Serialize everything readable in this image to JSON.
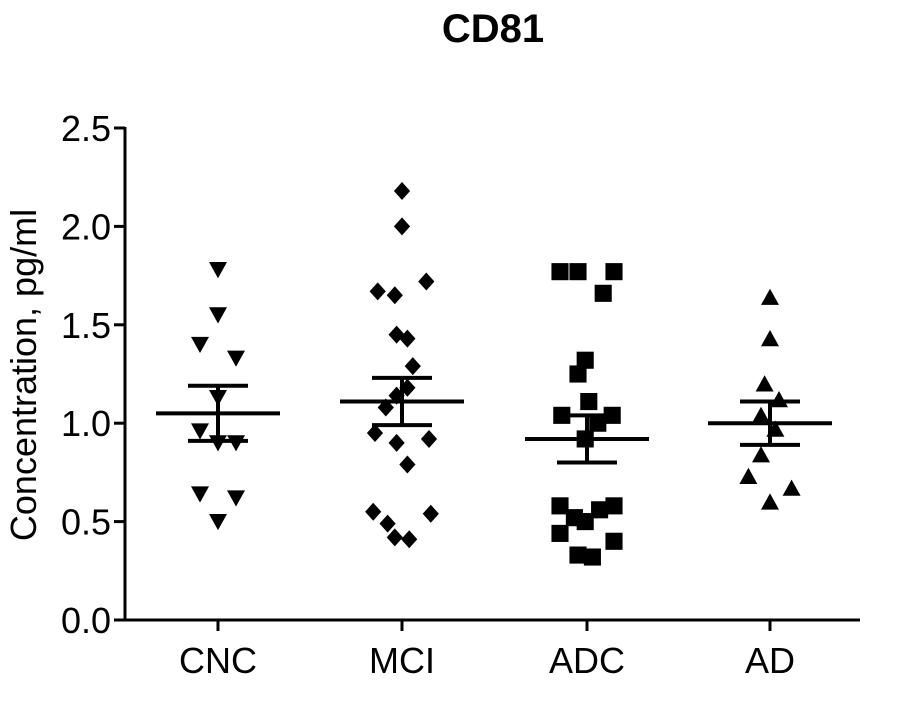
{
  "chart_data": {
    "type": "scatter",
    "title": "CD81",
    "xlabel": "",
    "ylabel": "Concentration, pg/ml",
    "ylim": [
      0.0,
      2.5
    ],
    "yticks": [
      "0.0",
      "0.5",
      "1.0",
      "1.5",
      "2.0",
      "2.5"
    ],
    "yticks_values": [
      0.0,
      0.5,
      1.0,
      1.5,
      2.0,
      2.5
    ],
    "categories": [
      "CNC",
      "MCI",
      "ADC",
      "AD"
    ],
    "grid": false,
    "legend": "none",
    "colors": {
      "marker": "#000000",
      "axis": "#000000"
    },
    "series": [
      {
        "category": "CNC",
        "marker": "triangle-down",
        "values": [
          1.78,
          1.55,
          1.4,
          1.33,
          1.13,
          0.96,
          0.9,
          0.9,
          0.64,
          0.62,
          0.5
        ],
        "offsets": [
          0,
          0,
          -1,
          1,
          0,
          -1,
          0,
          1,
          -1,
          1,
          0
        ],
        "mean": 1.05,
        "sem_upper": 1.19,
        "sem_lower": 0.91
      },
      {
        "category": "MCI",
        "marker": "diamond",
        "values": [
          2.18,
          2.0,
          1.72,
          1.67,
          1.65,
          1.45,
          1.43,
          1.29,
          1.18,
          1.14,
          1.08,
          0.95,
          0.92,
          0.9,
          0.79,
          0.55,
          0.54,
          0.49,
          0.42,
          0.41
        ],
        "offsets": [
          0,
          0,
          1.35,
          -1.35,
          -0.4,
          -0.3,
          0.3,
          0.6,
          0.3,
          -0.3,
          -0.9,
          -1.5,
          1.5,
          -0.3,
          0.3,
          -1.6,
          1.6,
          -0.8,
          -0.4,
          0.4
        ],
        "mean": 1.11,
        "sem_upper": 1.23,
        "sem_lower": 0.99
      },
      {
        "category": "ADC",
        "marker": "square",
        "values": [
          1.77,
          1.77,
          1.77,
          1.66,
          1.32,
          1.25,
          1.11,
          1.04,
          1.04,
          1.0,
          0.92,
          0.58,
          0.58,
          0.56,
          0.52,
          0.5,
          0.44,
          0.4,
          0.33,
          0.32
        ],
        "offsets": [
          -1.5,
          -0.5,
          1.5,
          0.9,
          -0.1,
          -0.5,
          0.1,
          -1.4,
          1.4,
          0.6,
          -0.1,
          -1.5,
          1.5,
          0.7,
          -0.7,
          -0.1,
          -1.5,
          1.5,
          -0.5,
          0.3
        ],
        "mean": 0.92,
        "sem_upper": 1.04,
        "sem_lower": 0.8
      },
      {
        "category": "AD",
        "marker": "triangle-up",
        "values": [
          1.64,
          1.43,
          1.2,
          1.12,
          1.04,
          0.97,
          0.84,
          0.73,
          0.67,
          0.6
        ],
        "offsets": [
          0,
          0,
          -0.3,
          0.5,
          -0.5,
          0.3,
          -0.5,
          -1.2,
          1.2,
          0
        ],
        "mean": 1.0,
        "sem_upper": 1.11,
        "sem_lower": 0.89
      }
    ]
  }
}
